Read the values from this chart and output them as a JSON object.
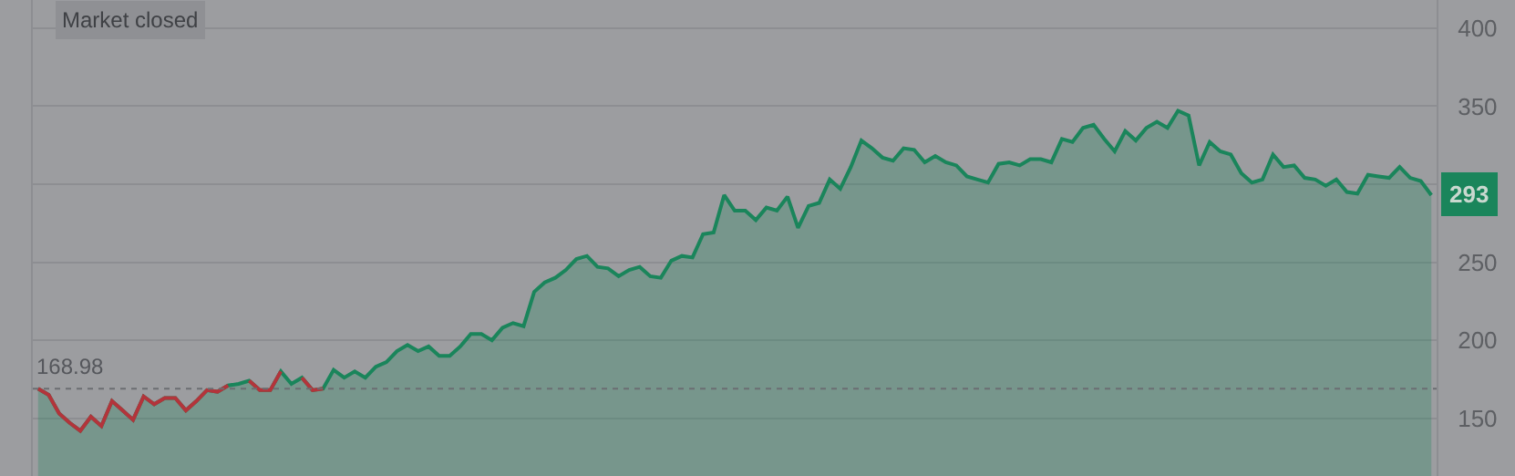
{
  "chart_data": {
    "type": "area",
    "categories": [
      null,
      null,
      null,
      null,
      null,
      null,
      null,
      null,
      null,
      null,
      null,
      null,
      null,
      null,
      null,
      null,
      null,
      null,
      null,
      null,
      null,
      null,
      null,
      null,
      null,
      null,
      null,
      null,
      null,
      null,
      null,
      null,
      null,
      null,
      null,
      null,
      null,
      null,
      null,
      null,
      null,
      null,
      null,
      null,
      null,
      null,
      null,
      null,
      null,
      null,
      null,
      null,
      null,
      null,
      null,
      null,
      null,
      null,
      null,
      null,
      null,
      null,
      null,
      null,
      null,
      null,
      null,
      null,
      null,
      null,
      null,
      null,
      null,
      null,
      null,
      null,
      null,
      null,
      null,
      null,
      null,
      null,
      null,
      null,
      null,
      null,
      null,
      null,
      null,
      null,
      null,
      null,
      null,
      null,
      null,
      null,
      null,
      null,
      null,
      null,
      null,
      null,
      null,
      null,
      null,
      null,
      null,
      null,
      null,
      null,
      null,
      null,
      null,
      null,
      null,
      null,
      null,
      null,
      null,
      null,
      null,
      null,
      null,
      null,
      null,
      null,
      null,
      null,
      null,
      null,
      null,
      null,
      null
    ],
    "series": [
      {
        "color": "#1a855b",
        "values": [
          169,
          165,
          153,
          147,
          142,
          151,
          145,
          161,
          155,
          149,
          164,
          159,
          163,
          163,
          155,
          161,
          168,
          167,
          171,
          172,
          174,
          168,
          168,
          180,
          172,
          176,
          168,
          169,
          181,
          176,
          180,
          176,
          183,
          186,
          193,
          197,
          193,
          196,
          190,
          190,
          196,
          204,
          204,
          200,
          208,
          211,
          209,
          231,
          237,
          240,
          245,
          252,
          254,
          247,
          246,
          241,
          245,
          247,
          241,
          240,
          251,
          254,
          253,
          268,
          269,
          293,
          283,
          283,
          277,
          285,
          283,
          292,
          272,
          286,
          288,
          303,
          297,
          311,
          328,
          323,
          317,
          315,
          323,
          322,
          314,
          318,
          314,
          312,
          305,
          303,
          301,
          313,
          314,
          312,
          316,
          316,
          314,
          329,
          327,
          336,
          338,
          329,
          321,
          334,
          328,
          336,
          340,
          336,
          347,
          344,
          312,
          327,
          321,
          319,
          307,
          301,
          303,
          319,
          311,
          312,
          304,
          303,
          299,
          303,
          295,
          294,
          306,
          305,
          304,
          311,
          304,
          302,
          293
        ]
      },
      {
        "type": "line",
        "color": "#b3343b",
        "values": [
          169,
          165,
          153,
          147,
          142,
          151,
          145,
          161,
          155,
          149,
          164,
          159,
          163,
          163,
          155,
          161,
          168,
          167,
          171,
          null,
          174,
          168,
          168,
          180,
          null,
          176,
          168,
          169,
          null,
          null,
          null,
          null,
          null,
          null,
          null,
          null,
          null,
          null,
          null,
          null,
          null,
          null,
          null,
          null,
          null,
          null,
          null,
          null,
          null,
          null,
          null,
          null,
          null,
          null,
          null,
          null,
          null,
          null,
          null,
          null,
          null,
          null,
          null,
          null,
          null,
          null,
          null,
          null,
          null,
          null,
          null,
          null,
          null,
          null,
          null,
          null,
          null,
          null,
          null,
          null,
          null,
          null,
          null,
          null,
          null,
          null,
          null,
          null,
          null,
          null,
          null,
          null,
          null,
          null,
          null,
          null,
          null,
          null,
          null,
          null,
          null,
          null,
          null,
          null,
          null,
          null,
          null,
          null,
          null,
          null,
          null,
          null,
          null,
          null,
          null,
          null,
          null,
          null,
          null,
          null,
          null,
          null,
          null,
          null,
          null,
          null,
          null,
          null,
          null,
          null,
          null,
          null,
          null
        ]
      }
    ],
    "ylim": [
      113,
      418
    ],
    "yticks": [
      150,
      200,
      250,
      {
        "value": 300,
        "label": null
      },
      350,
      400
    ],
    "grid": "y",
    "ref_lines": [
      {
        "axis": "y",
        "value": 168.98,
        "label": "168.98",
        "color": "#6b6d72",
        "line_style": "dotted"
      }
    ],
    "annotations": [
      "Market closed",
      {
        "text": "293",
        "y": 293
      }
    ]
  }
}
